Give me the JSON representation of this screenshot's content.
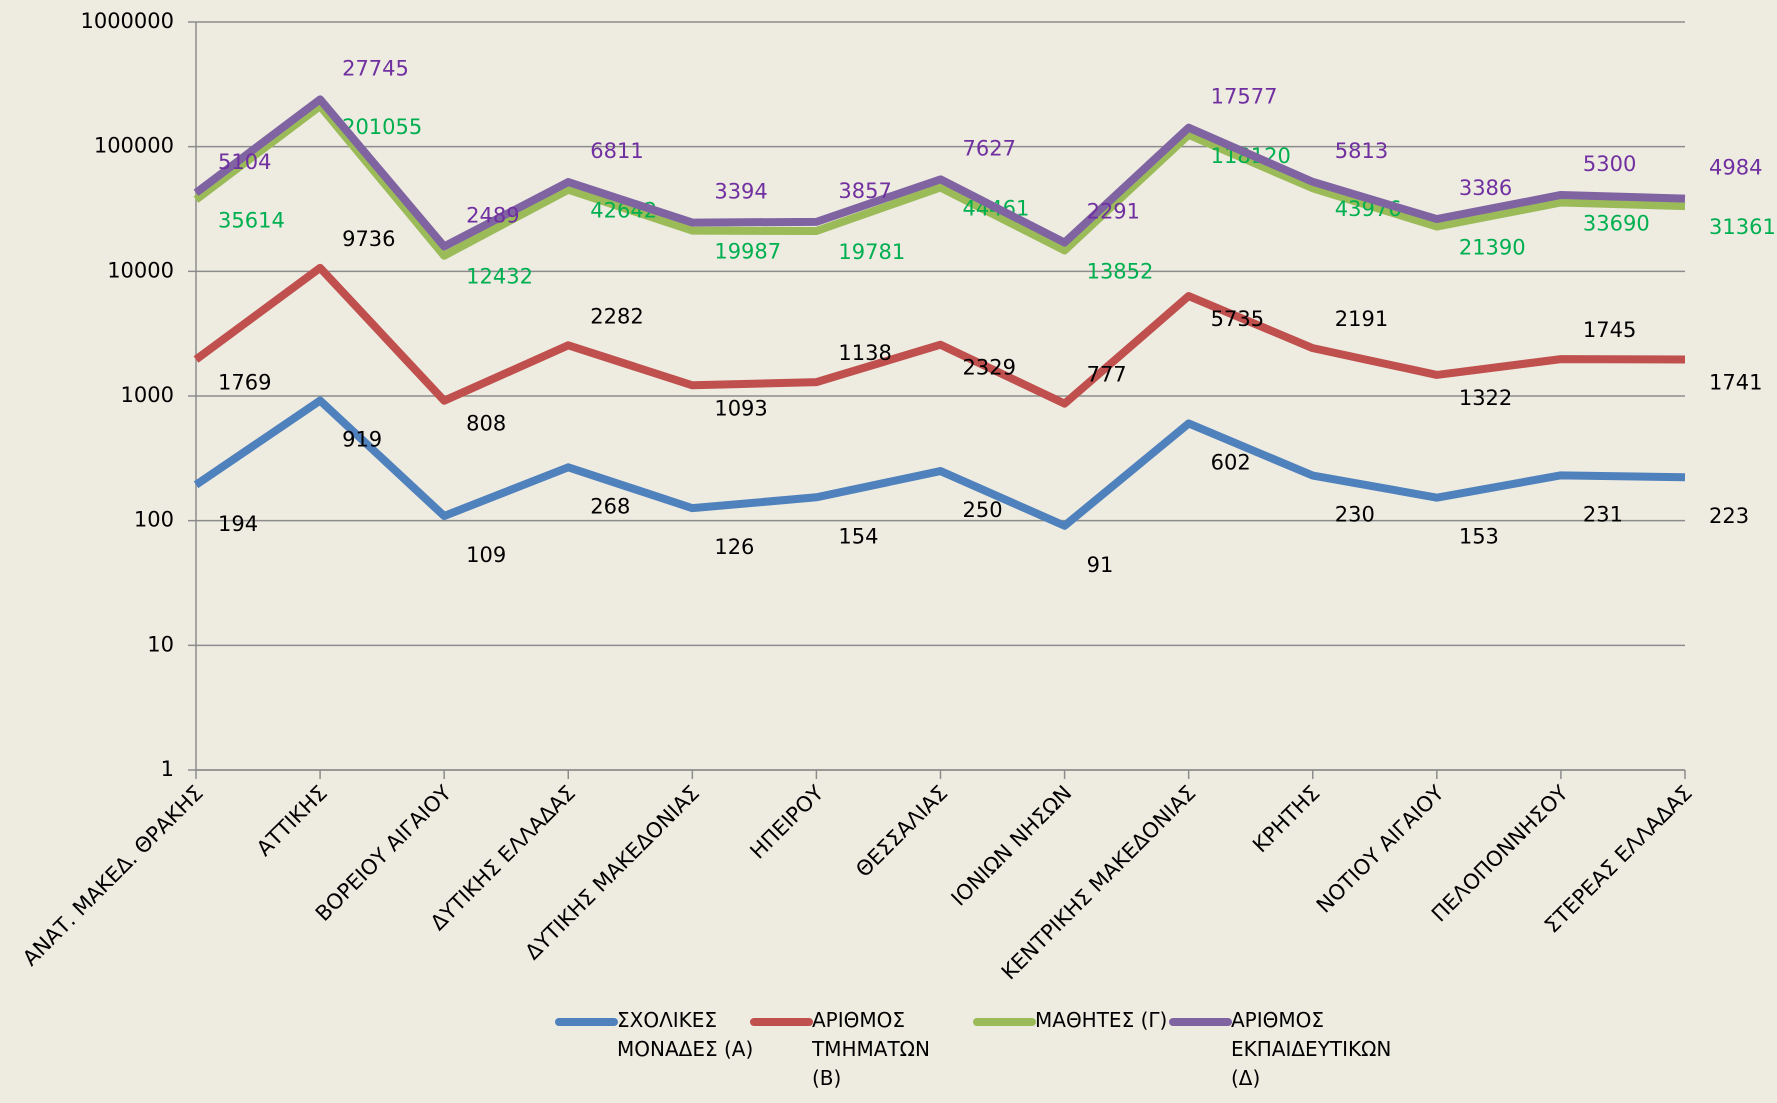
{
  "chart_data": {
    "type": "line",
    "stacked": true,
    "log_y": true,
    "grid": true,
    "legend": "bottom",
    "categories": [
      "ΑΝΑΤ. ΜΑΚΕΔ. ΘΡΑΚΗΣ",
      "ΑΤΤΙΚΗΣ",
      "ΒΟΡΕΙΟΥ ΑΙΓΑΙΟΥ",
      "ΔΥΤΙΚΗΣ ΕΛΛΑΔΑΣ",
      "ΔΥΤΙΚΗΣ ΜΑΚΕΔΟΝΙΑΣ",
      "ΗΠΕΙΡΟΥ",
      "ΘΕΣΣΑΛΙΑΣ",
      "ΙΟΝΙΩΝ ΝΗΣΩΝ",
      "ΚΕΝΤΡΙΚΗΣ ΜΑΚΕΔΟΝΙΑΣ",
      "ΚΡΗΤΗΣ",
      "ΝΟΤΙΟΥ ΑΙΓΑΙΟΥ",
      "ΠΕΛΟΠΟΝΝΗΣΟΥ",
      "ΣΤΕΡΕΑΣ ΕΛΛΑΔΑΣ"
    ],
    "series": [
      {
        "name": "ΣΧΟΛΙΚΕΣ ΜΟΝΑΔΕΣ (Α)",
        "color": "#4f81bd",
        "label_color": "#000000",
        "values": [
          194,
          919,
          109,
          268,
          126,
          154,
          250,
          91,
          602,
          230,
          153,
          231,
          223
        ]
      },
      {
        "name": "ΑΡΙΘΜΟΣ ΤΜΗΜΑΤΩΝ (Β)",
        "color": "#c0504d",
        "label_color": "#000000",
        "values": [
          1769,
          9736,
          808,
          2282,
          1093,
          1138,
          2329,
          777,
          5735,
          2191,
          1322,
          1745,
          1741
        ]
      },
      {
        "name": "ΜΑΘΗΤΕΣ (Γ)",
        "color": "#9bbb59",
        "label_color": "#00b050",
        "values": [
          35614,
          201055,
          12432,
          42642,
          19987,
          19781,
          44461,
          13852,
          118120,
          43976,
          21390,
          33690,
          31361
        ]
      },
      {
        "name": "ΑΡΙΘΜΟΣ ΕΚΠΑΙΔΕΥΤΙΚΩΝ (Δ)",
        "color": "#8064a2",
        "label_color": "#7030a0",
        "values": [
          5104,
          27745,
          2489,
          6811,
          3394,
          3857,
          7627,
          2291,
          17577,
          5813,
          3386,
          5300,
          4984
        ]
      }
    ],
    "ylim": [
      1,
      1000000
    ],
    "yticks": [
      1,
      10,
      100,
      1000,
      10000,
      100000,
      1000000
    ]
  }
}
